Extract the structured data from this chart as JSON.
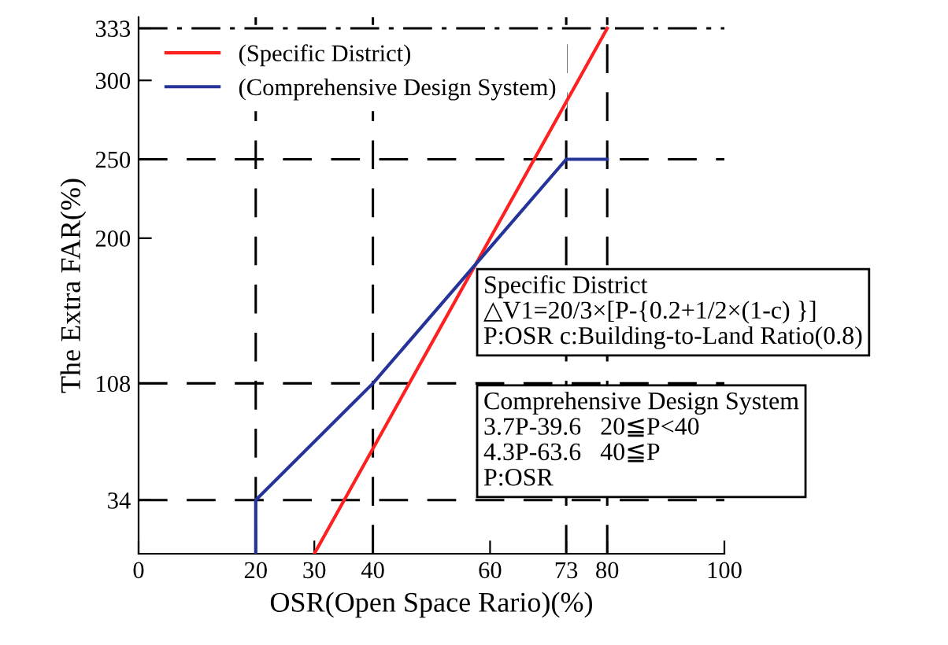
{
  "chart_data": {
    "type": "line",
    "xlabel": "OSR(Open Space Rario)(%)",
    "ylabel": "The Extra FAR(%)",
    "xlim": [
      0,
      100
    ],
    "xticks": [
      0,
      20,
      30,
      40,
      60,
      73,
      80,
      100
    ],
    "ylim": [
      0,
      340
    ],
    "yticks": [
      34,
      108,
      200,
      250,
      300,
      333
    ],
    "series": [
      {
        "name": "(Specific District)",
        "color": "#ff2020",
        "x": [
          30,
          80
        ],
        "values": [
          0,
          333
        ]
      },
      {
        "name": "(Comprehensive Design System)",
        "color": "#26349a",
        "x": [
          20,
          20,
          40,
          73,
          80
        ],
        "values": [
          0,
          34,
          108,
          250,
          250
        ]
      }
    ],
    "ref_lines": [
      {
        "axis": "y",
        "value": 34,
        "color": "#000000",
        "line_style": "dashed"
      },
      {
        "axis": "y",
        "value": 108,
        "color": "#000000",
        "line_style": "dashed"
      },
      {
        "axis": "y",
        "value": 250,
        "color": "#000000",
        "line_style": "dashed"
      },
      {
        "axis": "y",
        "value": 333,
        "color": "#000000",
        "line_style": "dashdot"
      },
      {
        "axis": "x",
        "value": 20,
        "color": "#000000",
        "line_style": "dashed"
      },
      {
        "axis": "x",
        "value": 40,
        "color": "#000000",
        "line_style": "dashed"
      },
      {
        "axis": "x",
        "value": 73,
        "color": "#000000",
        "line_style": "dashed"
      },
      {
        "axis": "x",
        "value": 80,
        "color": "#000000",
        "line_style": "dashed"
      }
    ],
    "annotations": [
      "Specific District\n△V1=20/3×[P-{0.2+1/2×(1-c) }]\nP:OSR c:Building-to-Land Ratio(0.8)",
      "Comprehensive Design System\n3.7P-39.6   20≦P<40\n4.3P-63.6   40≦P\nP:OSR"
    ],
    "legend": "top left",
    "grid": false
  }
}
